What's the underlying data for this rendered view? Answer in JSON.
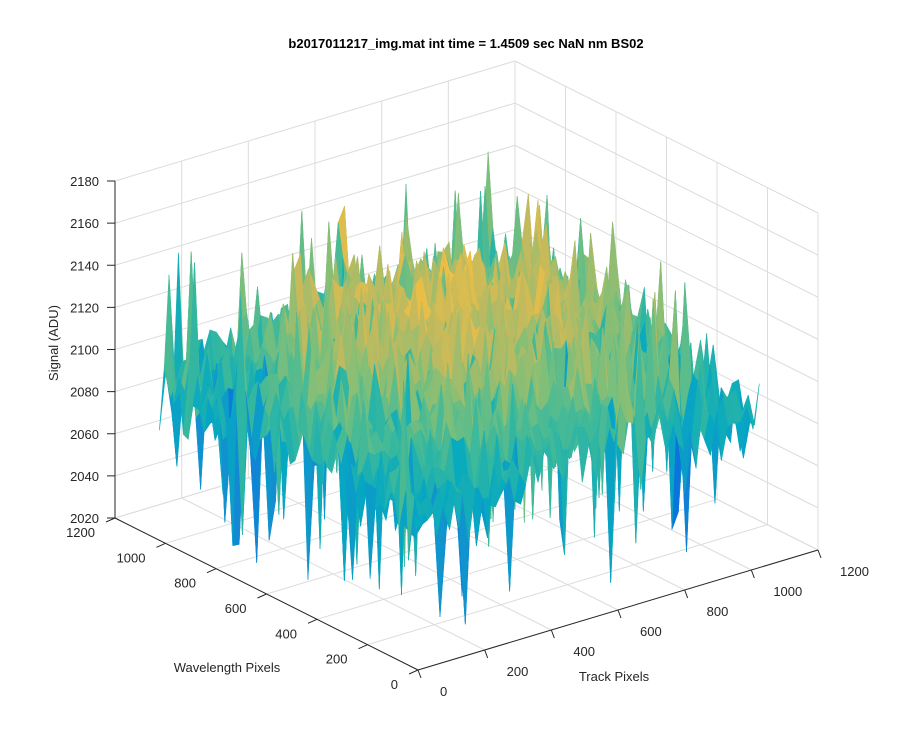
{
  "chart_data": {
    "type": "surface",
    "title": "b2017011217_img.mat int time = 1.4509 sec  NaN nm BS02",
    "xlabel": "Track Pixels",
    "ylabel": "Wavelength Pixels",
    "zlabel": "Signal (ADU)",
    "xlim": [
      0,
      1200
    ],
    "ylim": [
      0,
      1200
    ],
    "zlim": [
      2020,
      2180
    ],
    "xticks": [
      "0",
      "200",
      "400",
      "600",
      "800",
      "1000",
      "1200"
    ],
    "yticks": [
      "0",
      "200",
      "400",
      "600",
      "800",
      "1000",
      "1200"
    ],
    "zticks": [
      "2020",
      "2040",
      "2060",
      "2080",
      "2100",
      "2120",
      "2140",
      "2160",
      "2180"
    ],
    "grid": true,
    "colormap": "parula",
    "surface": {
      "description": "noisy dark-frame surface, higher in the center (~2140 ADU) and lower at the edges (~2090 ADU)",
      "x_extent": [
        0,
        1024
      ],
      "y_extent": [
        0,
        1024
      ],
      "center_level": 2135,
      "edge_level": 2095,
      "noise_amplitude": 20,
      "min_spike": 2030,
      "max_spike": 2160
    }
  }
}
